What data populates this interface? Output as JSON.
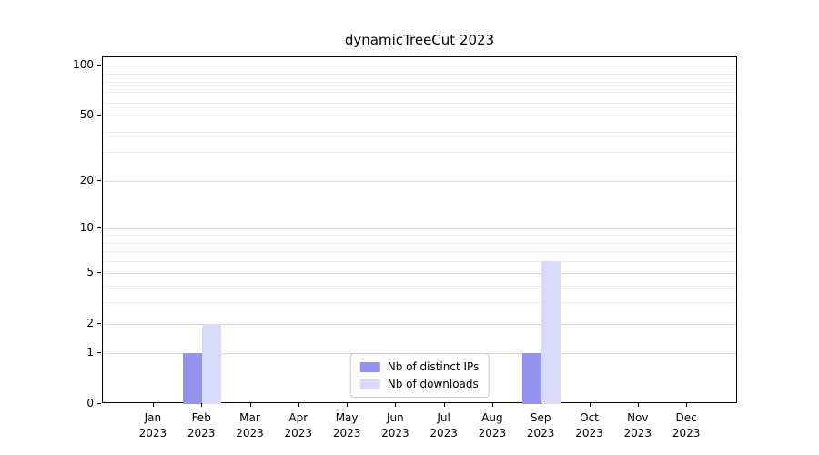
{
  "chart_data": {
    "type": "bar",
    "title": "dynamicTreeCut 2023",
    "categories": [
      "Jan",
      "Feb",
      "Mar",
      "Apr",
      "May",
      "Jun",
      "Jul",
      "Aug",
      "Sep",
      "Oct",
      "Nov",
      "Dec"
    ],
    "x_year_label": "2023",
    "series": [
      {
        "name": "Nb of distinct IPs",
        "color": "#9393ee",
        "values": [
          0,
          1,
          0,
          0,
          0,
          0,
          0,
          0,
          1,
          0,
          0,
          0
        ]
      },
      {
        "name": "Nb of downloads",
        "color": "#d9d9f8",
        "values": [
          0,
          2,
          0,
          0,
          0,
          0,
          0,
          0,
          6,
          0,
          0,
          0
        ]
      }
    ],
    "yscale": "log1p",
    "ylim": [
      0,
      112
    ],
    "yticks": [
      0,
      1,
      2,
      5,
      10,
      20,
      50,
      100
    ],
    "minor_yticks": [
      3,
      4,
      6,
      7,
      8,
      9,
      30,
      40,
      60,
      70,
      80,
      90
    ],
    "grid": true,
    "legend_position": "bottom-center"
  }
}
